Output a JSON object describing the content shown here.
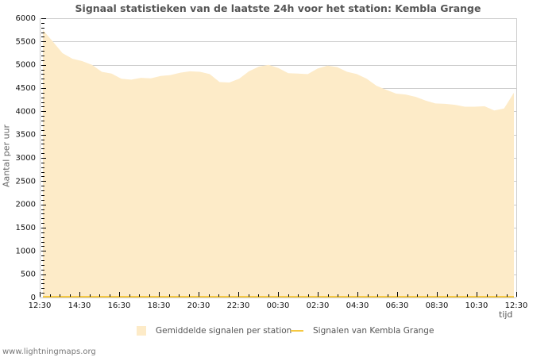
{
  "chart_data": {
    "type": "area",
    "title": "Signaal statistieken van de laatste 24h voor het station: Kembla Grange",
    "xlabel": "tijd",
    "ylabel": "Aantal per uur",
    "ylim": [
      0,
      6000
    ],
    "yticks": [
      0,
      500,
      1000,
      1500,
      2000,
      2500,
      3000,
      3500,
      4000,
      4500,
      5000,
      5500,
      6000
    ],
    "xtick_labels": [
      "12:30",
      "14:30",
      "16:30",
      "18:30",
      "20:30",
      "22:30",
      "00:30",
      "02:30",
      "04:30",
      "06:30",
      "08:30",
      "10:30",
      "12:30"
    ],
    "grid": true,
    "legend_position": "bottom",
    "x": [
      "12:30",
      "13:00",
      "13:30",
      "14:00",
      "14:30",
      "15:00",
      "15:30",
      "16:00",
      "16:30",
      "17:00",
      "17:30",
      "18:00",
      "18:30",
      "19:00",
      "19:30",
      "20:00",
      "20:30",
      "21:00",
      "21:30",
      "22:00",
      "22:30",
      "23:00",
      "23:30",
      "00:00",
      "00:30",
      "01:00",
      "01:30",
      "02:00",
      "02:30",
      "03:00",
      "03:30",
      "04:00",
      "04:30",
      "05:00",
      "05:30",
      "06:00",
      "06:30",
      "07:00",
      "07:30",
      "08:00",
      "08:30",
      "09:00",
      "09:30",
      "10:00",
      "10:30",
      "11:00",
      "11:30",
      "12:00",
      "12:30"
    ],
    "series": [
      {
        "name": "Gemiddelde signalen per station",
        "style": "area",
        "color": "#fdebc8",
        "values": [
          5750,
          5500,
          5250,
          5130,
          5080,
          5000,
          4850,
          4810,
          4700,
          4680,
          4720,
          4710,
          4760,
          4780,
          4830,
          4860,
          4850,
          4800,
          4630,
          4620,
          4700,
          4860,
          4960,
          5000,
          4930,
          4820,
          4810,
          4800,
          4920,
          4980,
          4950,
          4850,
          4800,
          4700,
          4550,
          4460,
          4380,
          4360,
          4310,
          4230,
          4170,
          4160,
          4140,
          4100,
          4100,
          4110,
          4020,
          4060,
          4400
        ]
      },
      {
        "name": "Signalen van Kembla Grange",
        "style": "line",
        "color": "#f5c842",
        "values": [
          0,
          0,
          0,
          0,
          0,
          0,
          0,
          0,
          0,
          0,
          0,
          0,
          0,
          0,
          0,
          0,
          0,
          0,
          0,
          0,
          0,
          0,
          0,
          0,
          0,
          0,
          0,
          0,
          0,
          0,
          0,
          0,
          0,
          0,
          0,
          0,
          0,
          0,
          0,
          0,
          0,
          0,
          0,
          0,
          0,
          0,
          0,
          0,
          0
        ]
      }
    ]
  },
  "footer": {
    "site": "www.lightningmaps.org"
  }
}
